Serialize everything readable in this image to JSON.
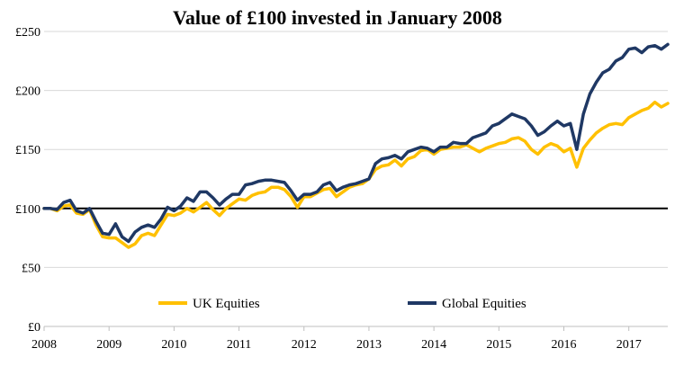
{
  "chart_data": {
    "type": "line",
    "title": "Value of £100 invested in January 2008",
    "xlabel": "",
    "ylabel": "",
    "xlim": [
      2008,
      2017.6
    ],
    "ylim": [
      0,
      250
    ],
    "grid": true,
    "legend_position": "lower-center",
    "x_ticks": [
      {
        "value": 2008,
        "label": "2008"
      },
      {
        "value": 2009,
        "label": "2009"
      },
      {
        "value": 2010,
        "label": "2010"
      },
      {
        "value": 2011,
        "label": "2011"
      },
      {
        "value": 2012,
        "label": "2012"
      },
      {
        "value": 2013,
        "label": "2013"
      },
      {
        "value": 2014,
        "label": "2014"
      },
      {
        "value": 2015,
        "label": "2015"
      },
      {
        "value": 2016,
        "label": "2016"
      },
      {
        "value": 2017,
        "label": "2017"
      }
    ],
    "y_ticks": [
      {
        "value": 0,
        "label": "£0"
      },
      {
        "value": 50,
        "label": "£50"
      },
      {
        "value": 100,
        "label": "£100"
      },
      {
        "value": 150,
        "label": "£150"
      },
      {
        "value": 200,
        "label": "£200"
      },
      {
        "value": 250,
        "label": "£250"
      }
    ],
    "reference_line": 100,
    "colors": {
      "uk": "#FFC000",
      "global": "#1F3864",
      "grid": "#d9d9d9",
      "reference": "#000000"
    },
    "series": [
      {
        "name": "UK Equities",
        "color": "#FFC000",
        "x": [
          2008.0,
          2008.1,
          2008.2,
          2008.3,
          2008.4,
          2008.5,
          2008.6,
          2008.7,
          2008.8,
          2008.9,
          2009.0,
          2009.1,
          2009.2,
          2009.3,
          2009.4,
          2009.5,
          2009.6,
          2009.7,
          2009.8,
          2009.9,
          2010.0,
          2010.1,
          2010.2,
          2010.3,
          2010.4,
          2010.5,
          2010.6,
          2010.7,
          2010.8,
          2010.9,
          2011.0,
          2011.1,
          2011.2,
          2011.3,
          2011.4,
          2011.5,
          2011.6,
          2011.7,
          2011.8,
          2011.9,
          2012.0,
          2012.1,
          2012.2,
          2012.3,
          2012.4,
          2012.5,
          2012.6,
          2012.7,
          2012.8,
          2012.9,
          2013.0,
          2013.1,
          2013.2,
          2013.3,
          2013.4,
          2013.5,
          2013.6,
          2013.7,
          2013.8,
          2013.9,
          2014.0,
          2014.1,
          2014.2,
          2014.3,
          2014.4,
          2014.5,
          2014.6,
          2014.7,
          2014.8,
          2014.9,
          2015.0,
          2015.1,
          2015.2,
          2015.3,
          2015.4,
          2015.5,
          2015.6,
          2015.7,
          2015.8,
          2015.9,
          2016.0,
          2016.1,
          2016.2,
          2016.3,
          2016.4,
          2016.5,
          2016.6,
          2016.7,
          2016.8,
          2016.9,
          2017.0,
          2017.1,
          2017.2,
          2017.3,
          2017.4,
          2017.5,
          2017.6
        ],
        "values": [
          100,
          100,
          98,
          102,
          103,
          96,
          95,
          99,
          86,
          76,
          75,
          75,
          71,
          67,
          70,
          77,
          79,
          77,
          86,
          95,
          94,
          96,
          100,
          97,
          101,
          105,
          99,
          94,
          100,
          104,
          108,
          107,
          111,
          113,
          114,
          118,
          118,
          116,
          110,
          101,
          110,
          110,
          113,
          116,
          117,
          110,
          114,
          118,
          120,
          121,
          125,
          133,
          136,
          137,
          141,
          136,
          142,
          144,
          149,
          150,
          146,
          150,
          151,
          152,
          152,
          154,
          151,
          148,
          151,
          153,
          155,
          156,
          159,
          160,
          157,
          150,
          146,
          152,
          155,
          153,
          148,
          151,
          135,
          151,
          158,
          164,
          168,
          171,
          172,
          171,
          177,
          180,
          183,
          185,
          190,
          186,
          189
        ]
      },
      {
        "name": "Global Equities",
        "color": "#1F3864",
        "x": [
          2008.0,
          2008.1,
          2008.2,
          2008.3,
          2008.4,
          2008.5,
          2008.6,
          2008.7,
          2008.8,
          2008.9,
          2009.0,
          2009.1,
          2009.2,
          2009.3,
          2009.4,
          2009.5,
          2009.6,
          2009.7,
          2009.8,
          2009.9,
          2010.0,
          2010.1,
          2010.2,
          2010.3,
          2010.4,
          2010.5,
          2010.6,
          2010.7,
          2010.8,
          2010.9,
          2011.0,
          2011.1,
          2011.2,
          2011.3,
          2011.4,
          2011.5,
          2011.6,
          2011.7,
          2011.8,
          2011.9,
          2012.0,
          2012.1,
          2012.2,
          2012.3,
          2012.4,
          2012.5,
          2012.6,
          2012.7,
          2012.8,
          2012.9,
          2013.0,
          2013.1,
          2013.2,
          2013.3,
          2013.4,
          2013.5,
          2013.6,
          2013.7,
          2013.8,
          2013.9,
          2014.0,
          2014.1,
          2014.2,
          2014.3,
          2014.4,
          2014.5,
          2014.6,
          2014.7,
          2014.8,
          2014.9,
          2015.0,
          2015.1,
          2015.2,
          2015.3,
          2015.4,
          2015.5,
          2015.6,
          2015.7,
          2015.8,
          2015.9,
          2016.0,
          2016.1,
          2016.2,
          2016.3,
          2016.4,
          2016.5,
          2016.6,
          2016.7,
          2016.8,
          2016.9,
          2017.0,
          2017.1,
          2017.2,
          2017.3,
          2017.4,
          2017.5,
          2017.6
        ],
        "values": [
          100,
          100,
          99,
          105,
          107,
          98,
          96,
          100,
          89,
          79,
          78,
          87,
          76,
          72,
          80,
          84,
          86,
          84,
          91,
          101,
          98,
          102,
          109,
          106,
          114,
          114,
          109,
          103,
          108,
          112,
          112,
          120,
          121,
          123,
          124,
          124,
          123,
          122,
          115,
          107,
          112,
          112,
          114,
          120,
          122,
          115,
          118,
          120,
          121,
          123,
          125,
          138,
          142,
          143,
          145,
          142,
          148,
          150,
          152,
          151,
          148,
          152,
          152,
          156,
          155,
          155,
          160,
          162,
          164,
          170,
          172,
          176,
          180,
          178,
          176,
          170,
          162,
          165,
          170,
          174,
          170,
          172,
          150,
          180,
          197,
          207,
          215,
          218,
          225,
          228,
          235,
          236,
          232,
          237,
          238,
          235,
          239
        ]
      }
    ]
  }
}
